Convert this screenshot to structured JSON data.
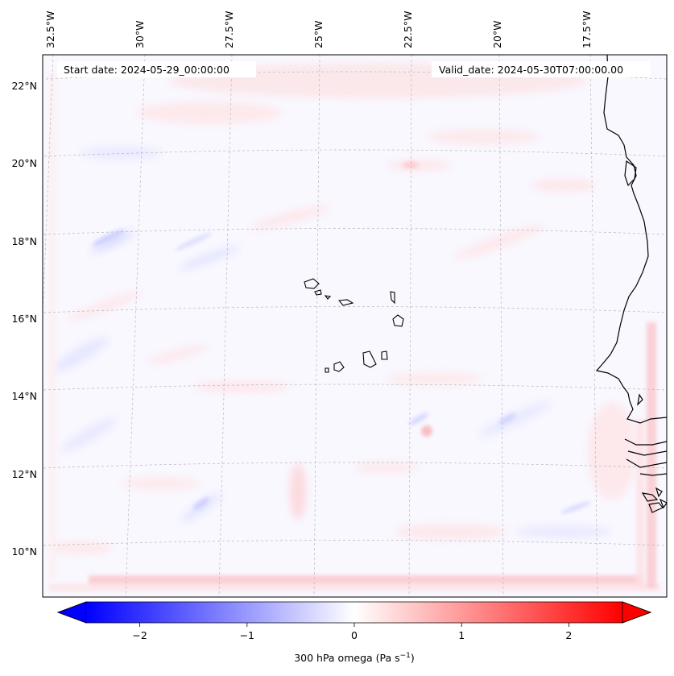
{
  "map": {
    "region": "Eastern tropical Atlantic — Cape Verde islands and West African coast",
    "start_label": "Start date: 2024-05-29_00:00:00",
    "valid_label": "Valid_date: 2024-05-30T07:00:00.00",
    "lon_labels": [
      "32.5°W",
      "30°W",
      "27.5°W",
      "25°W",
      "22.5°W",
      "20°W",
      "17.5°W"
    ],
    "lat_labels": [
      "22°N",
      "20°N",
      "18°N",
      "16°N",
      "14°N",
      "12°N",
      "10°N"
    ],
    "gridlines": true,
    "colormap": "bwr",
    "colors": {
      "negative": "#0000ff",
      "zero": "#ffffff",
      "positive": "#ff0000",
      "coast": "#000000",
      "grid": "#b0b0b0"
    }
  },
  "colorbar": {
    "ticks": [
      "−2",
      "−1",
      "0",
      "1",
      "2"
    ],
    "tick_values": [
      -2,
      -1,
      0,
      1,
      2
    ],
    "range": [
      -2.5,
      2.5
    ],
    "extend": "both",
    "label_main": "300 hPa omega (Pa s",
    "label_sup": "−1",
    "label_close": ")"
  }
}
